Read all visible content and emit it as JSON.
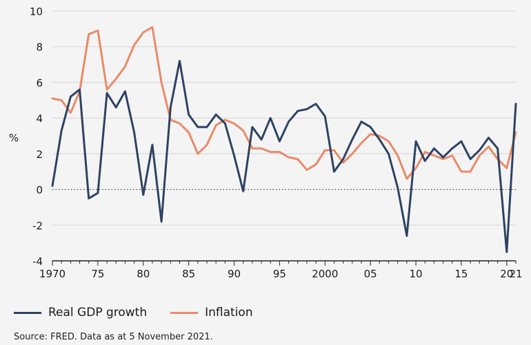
{
  "chart_data": {
    "type": "line",
    "title": "",
    "xlabel": "",
    "ylabel": "%",
    "xlim": [
      1970,
      2021
    ],
    "ylim": [
      -4,
      10
    ],
    "yticks": [
      -4,
      -2,
      0,
      2,
      4,
      6,
      8,
      10
    ],
    "xticks": [
      {
        "year": 1970,
        "label": "1970"
      },
      {
        "year": 1975,
        "label": "75"
      },
      {
        "year": 1980,
        "label": "80"
      },
      {
        "year": 1985,
        "label": "85"
      },
      {
        "year": 1990,
        "label": "90"
      },
      {
        "year": 1995,
        "label": "95"
      },
      {
        "year": 2000,
        "label": "2000"
      },
      {
        "year": 2005,
        "label": "05"
      },
      {
        "year": 2010,
        "label": "10"
      },
      {
        "year": 2015,
        "label": "15"
      },
      {
        "year": 2020,
        "label": "20"
      }
    ],
    "extra_tick_labels": [
      {
        "year": 2021,
        "label": "21"
      }
    ],
    "zero_line": "dotted",
    "x": [
      1970,
      1971,
      1972,
      1973,
      1974,
      1975,
      1976,
      1977,
      1978,
      1979,
      1980,
      1981,
      1982,
      1983,
      1984,
      1985,
      1986,
      1987,
      1988,
      1989,
      1990,
      1991,
      1992,
      1993,
      1994,
      1995,
      1996,
      1997,
      1998,
      1999,
      2000,
      2001,
      2002,
      2003,
      2004,
      2005,
      2006,
      2007,
      2008,
      2009,
      2010,
      2011,
      2012,
      2013,
      2014,
      2015,
      2016,
      2017,
      2018,
      2019,
      2020,
      2021
    ],
    "series": [
      {
        "name": "Real GDP growth",
        "color": "#2d4263",
        "values": [
          0.2,
          3.3,
          5.2,
          5.6,
          -0.5,
          -0.2,
          5.4,
          4.6,
          5.5,
          3.2,
          -0.3,
          2.5,
          -1.8,
          4.6,
          7.2,
          4.2,
          3.5,
          3.5,
          4.2,
          3.7,
          1.9,
          -0.1,
          3.5,
          2.8,
          4.0,
          2.7,
          3.8,
          4.4,
          4.5,
          4.8,
          4.1,
          1.0,
          1.7,
          2.8,
          3.8,
          3.5,
          2.8,
          2.0,
          0.1,
          -2.6,
          2.7,
          1.6,
          2.3,
          1.8,
          2.3,
          2.7,
          1.7,
          2.2,
          2.9,
          2.3,
          -3.5,
          4.8
        ]
      },
      {
        "name": "Inflation",
        "color": "#e98a68",
        "values": [
          5.1,
          5.0,
          4.3,
          5.5,
          8.7,
          8.9,
          5.6,
          6.2,
          6.9,
          8.1,
          8.8,
          9.1,
          6.0,
          3.9,
          3.7,
          3.2,
          2.0,
          2.5,
          3.6,
          3.9,
          3.7,
          3.3,
          2.3,
          2.3,
          2.1,
          2.1,
          1.8,
          1.7,
          1.1,
          1.4,
          2.2,
          2.2,
          1.5,
          2.0,
          2.6,
          3.1,
          3.0,
          2.7,
          1.9,
          0.6,
          1.2,
          2.1,
          1.9,
          1.7,
          1.9,
          1.0,
          1.0,
          1.9,
          2.4,
          1.7,
          1.2,
          3.2
        ]
      }
    ],
    "legend": {
      "position": "bottom-left",
      "items": [
        "Real GDP growth",
        "Inflation"
      ]
    },
    "source": "Source: FRED. Data as at 5 November 2021."
  }
}
